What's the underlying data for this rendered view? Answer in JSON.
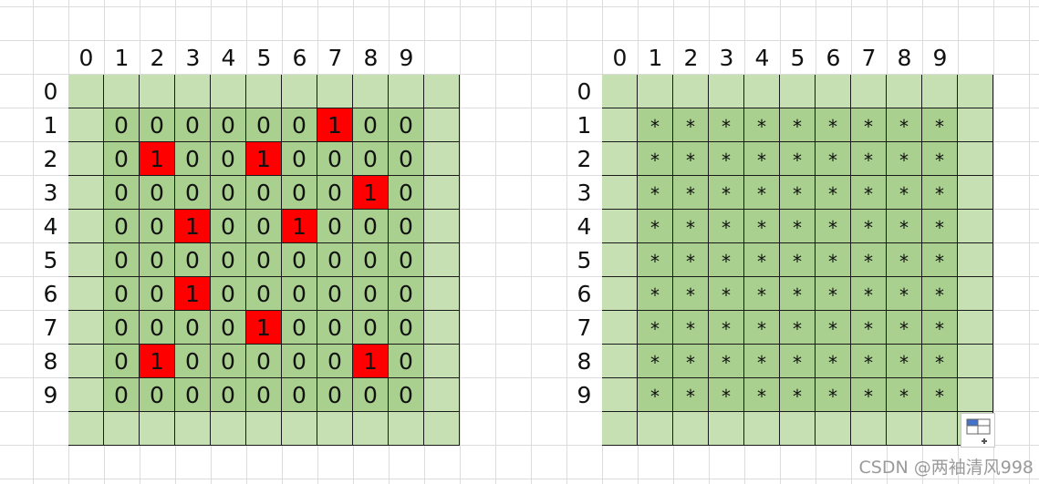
{
  "left_panel": {
    "col_headers": [
      "0",
      "1",
      "2",
      "3",
      "4",
      "5",
      "6",
      "7",
      "8",
      "9"
    ],
    "row_headers": [
      "0",
      "1",
      "2",
      "3",
      "4",
      "5",
      "6",
      "7",
      "8",
      "9"
    ],
    "rows": [
      [
        "0",
        "0",
        "0",
        "0",
        "0",
        "0",
        "1",
        "0",
        "0"
      ],
      [
        "0",
        "1",
        "0",
        "0",
        "1",
        "0",
        "0",
        "0",
        "0"
      ],
      [
        "0",
        "0",
        "0",
        "0",
        "0",
        "0",
        "0",
        "1",
        "0"
      ],
      [
        "0",
        "0",
        "1",
        "0",
        "0",
        "1",
        "0",
        "0",
        "0"
      ],
      [
        "0",
        "0",
        "0",
        "0",
        "0",
        "0",
        "0",
        "0",
        "0"
      ],
      [
        "0",
        "0",
        "1",
        "0",
        "0",
        "0",
        "0",
        "0",
        "0"
      ],
      [
        "0",
        "0",
        "0",
        "0",
        "1",
        "0",
        "0",
        "0",
        "0"
      ],
      [
        "0",
        "1",
        "0",
        "0",
        "0",
        "0",
        "0",
        "1",
        "0"
      ],
      [
        "0",
        "0",
        "0",
        "0",
        "0",
        "0",
        "0",
        "0",
        "0"
      ]
    ]
  },
  "right_panel": {
    "col_headers": [
      "0",
      "1",
      "2",
      "3",
      "4",
      "5",
      "6",
      "7",
      "8",
      "9"
    ],
    "row_headers": [
      "0",
      "1",
      "2",
      "3",
      "4",
      "5",
      "6",
      "7",
      "8",
      "9"
    ],
    "rows": [
      [
        "*",
        "*",
        "*",
        "*",
        "*",
        "*",
        "*",
        "*",
        "*"
      ],
      [
        "*",
        "*",
        "*",
        "*",
        "*",
        "*",
        "*",
        "*",
        "*"
      ],
      [
        "*",
        "*",
        "*",
        "*",
        "*",
        "*",
        "*",
        "*",
        "*"
      ],
      [
        "*",
        "*",
        "*",
        "*",
        "*",
        "*",
        "*",
        "*",
        "*"
      ],
      [
        "*",
        "*",
        "*",
        "*",
        "*",
        "*",
        "*",
        "*",
        "*"
      ],
      [
        "*",
        "*",
        "*",
        "*",
        "*",
        "*",
        "*",
        "*",
        "*"
      ],
      [
        "*",
        "*",
        "*",
        "*",
        "*",
        "*",
        "*",
        "*",
        "*"
      ],
      [
        "*",
        "*",
        "*",
        "*",
        "*",
        "*",
        "*",
        "*",
        "*"
      ],
      [
        "*",
        "*",
        "*",
        "*",
        "*",
        "*",
        "*",
        "*",
        "*"
      ]
    ]
  },
  "colors": {
    "border_fill": "#c6e0b4",
    "inner_fill": "#a9d08e",
    "highlight_fill": "#ff0000"
  },
  "paste_options_icon": "paste-options-icon",
  "watermark": "CSDN @两袖清风998"
}
